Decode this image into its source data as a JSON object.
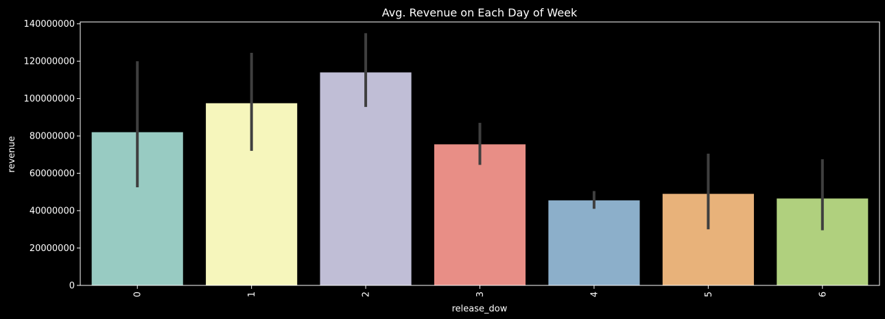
{
  "chart_data": {
    "type": "bar",
    "title": "Avg. Revenue on Each Day of Week",
    "xlabel": "release_dow",
    "ylabel": "revenue",
    "categories": [
      "0",
      "1",
      "2",
      "3",
      "4",
      "5",
      "6"
    ],
    "values": [
      82000000,
      97500000,
      114000000,
      75500000,
      45500000,
      49000000,
      46500000
    ],
    "error_low": [
      52500000,
      72000000,
      95500000,
      64500000,
      41000000,
      30000000,
      29500000
    ],
    "error_high": [
      120000000,
      124500000,
      135000000,
      87000000,
      50500000,
      70500000,
      67500000
    ],
    "ylim": [
      0,
      141000000
    ],
    "yticks": [
      0,
      20000000,
      40000000,
      60000000,
      80000000,
      100000000,
      120000000,
      140000000
    ],
    "ytick_labels": [
      "0",
      "20000000",
      "40000000",
      "60000000",
      "80000000",
      "100000000",
      "120000000",
      "140000000"
    ],
    "bar_colors": [
      "#98cbc2",
      "#f6f6bc",
      "#c0bed6",
      "#e88e86",
      "#8cafca",
      "#e8b27a",
      "#b0d07e"
    ],
    "error_bar_color": "#3f3f3f",
    "x_tick_rotation": "vertical",
    "grid": false,
    "background": "#000000",
    "axis_color": "#ffffff"
  }
}
